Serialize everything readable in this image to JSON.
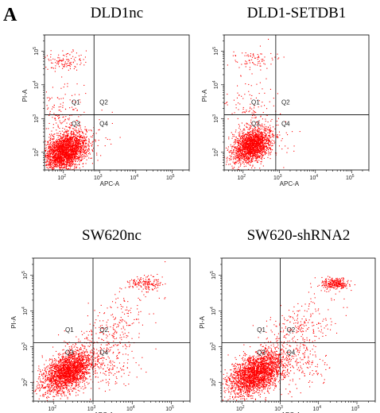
{
  "figure": {
    "panel_letter": "A"
  },
  "colors": {
    "point": "#ff0000",
    "frame": "#000000",
    "gate": "#000000"
  },
  "chart_data": [
    {
      "type": "scatter",
      "title": "DLD1nc",
      "xlabel": "APC-A",
      "ylabel": "PI-A",
      "xscale": "log",
      "yscale": "log",
      "xlim": [
        30,
        300000
      ],
      "ylim": [
        30,
        300000
      ],
      "x_ticks": [
        {
          "base": "10",
          "exp": "2",
          "value": 100
        },
        {
          "base": "10",
          "exp": "3",
          "value": 1000
        },
        {
          "base": "10",
          "exp": "4",
          "value": 10000
        },
        {
          "base": "10",
          "exp": "5",
          "value": 100000
        }
      ],
      "y_ticks": [
        {
          "base": "10",
          "exp": "2",
          "value": 100
        },
        {
          "base": "10",
          "exp": "3",
          "value": 1000
        },
        {
          "base": "10",
          "exp": "4",
          "value": 10000
        },
        {
          "base": "10",
          "exp": "5",
          "value": 100000
        }
      ],
      "quadrant_gate": {
        "x": 700,
        "y": 1300
      },
      "quadrant_labels": [
        {
          "text": "Q1",
          "x": 220,
          "y": 2600
        },
        {
          "text": "Q2",
          "x": 1300,
          "y": 2600
        },
        {
          "text": "Q3",
          "x": 220,
          "y": 600
        },
        {
          "text": "Q4",
          "x": 1300,
          "y": 600
        }
      ],
      "clusters": [
        {
          "n": 2400,
          "cx": 110,
          "cy": 110,
          "sx": 0.3,
          "sy": 0.28,
          "rho": 0.3
        },
        {
          "n": 120,
          "cx": 100,
          "cy": 50000,
          "sx": 0.3,
          "sy": 0.14,
          "rho": 0
        },
        {
          "n": 150,
          "cx": 90,
          "cy": 1500,
          "sx": 0.35,
          "sy": 0.5,
          "rho": 0
        },
        {
          "n": 40,
          "cx": 600,
          "cy": 200,
          "sx": 0.3,
          "sy": 0.4,
          "rho": 0
        }
      ]
    },
    {
      "type": "scatter",
      "title": "DLD1-SETDB1",
      "xlabel": "APC-A",
      "ylabel": "PI-A",
      "xscale": "log",
      "yscale": "log",
      "xlim": [
        30,
        300000
      ],
      "ylim": [
        30,
        300000
      ],
      "x_ticks": [
        {
          "base": "10",
          "exp": "2",
          "value": 100
        },
        {
          "base": "10",
          "exp": "3",
          "value": 1000
        },
        {
          "base": "10",
          "exp": "4",
          "value": 10000
        },
        {
          "base": "10",
          "exp": "5",
          "value": 100000
        }
      ],
      "y_ticks": [
        {
          "base": "10",
          "exp": "2",
          "value": 100
        },
        {
          "base": "10",
          "exp": "3",
          "value": 1000
        },
        {
          "base": "10",
          "exp": "4",
          "value": 10000
        },
        {
          "base": "10",
          "exp": "5",
          "value": 100000
        }
      ],
      "quadrant_gate": {
        "x": 800,
        "y": 1300
      },
      "quadrant_labels": [
        {
          "text": "Q1",
          "x": 220,
          "y": 2600
        },
        {
          "text": "Q2",
          "x": 1500,
          "y": 2600
        },
        {
          "text": "Q3",
          "x": 220,
          "y": 600
        },
        {
          "text": "Q4",
          "x": 1500,
          "y": 600
        }
      ],
      "clusters": [
        {
          "n": 1800,
          "cx": 170,
          "cy": 160,
          "sx": 0.26,
          "sy": 0.25,
          "rho": 0.3
        },
        {
          "n": 80,
          "cx": 200,
          "cy": 60000,
          "sx": 0.3,
          "sy": 0.14,
          "rho": 0
        },
        {
          "n": 120,
          "cx": 150,
          "cy": 2000,
          "sx": 0.35,
          "sy": 0.5,
          "rho": 0
        },
        {
          "n": 60,
          "cx": 600,
          "cy": 300,
          "sx": 0.3,
          "sy": 0.4,
          "rho": 0
        }
      ]
    },
    {
      "type": "scatter",
      "title": "SW620nc",
      "xlabel": "APC-A",
      "ylabel": "PI-A",
      "xscale": "log",
      "yscale": "log",
      "xlim": [
        30,
        300000
      ],
      "ylim": [
        30,
        300000
      ],
      "x_ticks": [
        {
          "base": "10",
          "exp": "2",
          "value": 100
        },
        {
          "base": "10",
          "exp": "3",
          "value": 1000
        },
        {
          "base": "10",
          "exp": "4",
          "value": 10000
        },
        {
          "base": "10",
          "exp": "5",
          "value": 100000
        }
      ],
      "y_ticks": [
        {
          "base": "10",
          "exp": "2",
          "value": 100
        },
        {
          "base": "10",
          "exp": "3",
          "value": 1000
        },
        {
          "base": "10",
          "exp": "4",
          "value": 10000
        },
        {
          "base": "10",
          "exp": "5",
          "value": 100000
        }
      ],
      "quadrant_gate": {
        "x": 1000,
        "y": 1300
      },
      "quadrant_labels": [
        {
          "text": "Q1",
          "x": 250,
          "y": 2600
        },
        {
          "text": "Q2",
          "x": 1900,
          "y": 2600
        },
        {
          "text": "Q3",
          "x": 250,
          "y": 600
        },
        {
          "text": "Q4",
          "x": 1900,
          "y": 600
        }
      ],
      "clusters": [
        {
          "n": 2200,
          "cx": 220,
          "cy": 200,
          "sx": 0.33,
          "sy": 0.3,
          "rho": 0.45
        },
        {
          "n": 160,
          "cx": 20000,
          "cy": 60000,
          "sx": 0.22,
          "sy": 0.1,
          "rho": 0
        },
        {
          "n": 300,
          "cx": 2500,
          "cy": 2500,
          "sx": 0.55,
          "sy": 0.55,
          "rho": 0.6
        },
        {
          "n": 120,
          "cx": 3000,
          "cy": 250,
          "sx": 0.35,
          "sy": 0.35,
          "rho": 0
        }
      ]
    },
    {
      "type": "scatter",
      "title": "SW620-shRNA2",
      "xlabel": "APC-A",
      "ylabel": "PI-A",
      "xscale": "log",
      "yscale": "log",
      "xlim": [
        30,
        300000
      ],
      "ylim": [
        30,
        300000
      ],
      "x_ticks": [
        {
          "base": "10",
          "exp": "2",
          "value": 100
        },
        {
          "base": "10",
          "exp": "3",
          "value": 1000
        },
        {
          "base": "10",
          "exp": "4",
          "value": 10000
        },
        {
          "base": "10",
          "exp": "5",
          "value": 100000
        }
      ],
      "y_ticks": [
        {
          "base": "10",
          "exp": "2",
          "value": 100
        },
        {
          "base": "10",
          "exp": "3",
          "value": 1000
        },
        {
          "base": "10",
          "exp": "4",
          "value": 10000
        },
        {
          "base": "10",
          "exp": "5",
          "value": 100000
        }
      ],
      "quadrant_gate": {
        "x": 1000,
        "y": 1300
      },
      "quadrant_labels": [
        {
          "text": "Q1",
          "x": 320,
          "y": 2600
        },
        {
          "text": "Q2",
          "x": 1900,
          "y": 2600
        },
        {
          "text": "Q3",
          "x": 320,
          "y": 600
        },
        {
          "text": "Q4",
          "x": 1900,
          "y": 600
        }
      ],
      "clusters": [
        {
          "n": 2400,
          "cx": 230,
          "cy": 180,
          "sx": 0.35,
          "sy": 0.3,
          "rho": 0.45
        },
        {
          "n": 260,
          "cx": 25000,
          "cy": 60000,
          "sx": 0.18,
          "sy": 0.08,
          "rho": 0
        },
        {
          "n": 320,
          "cx": 2500,
          "cy": 2500,
          "sx": 0.55,
          "sy": 0.55,
          "rho": 0.6
        },
        {
          "n": 140,
          "cx": 3500,
          "cy": 300,
          "sx": 0.35,
          "sy": 0.35,
          "rho": 0
        }
      ]
    }
  ]
}
